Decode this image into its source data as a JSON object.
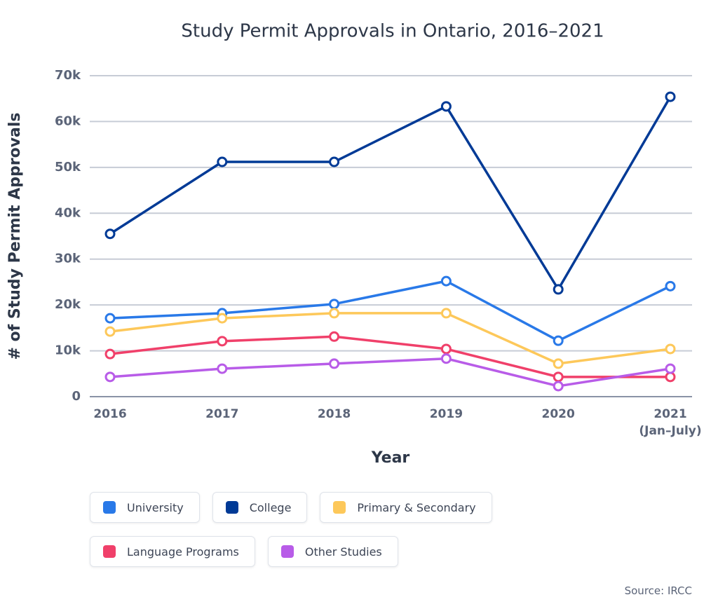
{
  "chart_data": {
    "type": "line",
    "title": "Study Permit Approvals in Ontario, 2016–2021",
    "x_label": "Year",
    "y_label": "# of Study Permit Approvals",
    "source": "Source: IRCC",
    "categories": [
      "2016",
      "2017",
      "2018",
      "2019",
      "2020",
      "2021\n(Jan–July)"
    ],
    "series": [
      {
        "name": "University",
        "color": "#2979e8",
        "values": [
          17100,
          18200,
          20200,
          25200,
          12200,
          24100
        ]
      },
      {
        "name": "College",
        "color": "#003a96",
        "values": [
          35500,
          51200,
          51200,
          63300,
          23400,
          65400
        ]
      },
      {
        "name": "Primary & Secondary",
        "color": "#fdc85a",
        "values": [
          14200,
          17100,
          18200,
          18200,
          7200,
          10400
        ]
      },
      {
        "name": "Language Programs",
        "color": "#f0406a",
        "values": [
          9300,
          12100,
          13100,
          10400,
          4300,
          4300
        ]
      },
      {
        "name": "Other Studies",
        "color": "#b85ce8",
        "values": [
          4300,
          6100,
          7200,
          8300,
          2300,
          6100
        ]
      }
    ],
    "ylim": [
      0,
      70000
    ],
    "yticks": [
      0,
      {
        "value": 10000,
        "label": "10k"
      },
      {
        "value": 20000,
        "label": "20k"
      },
      {
        "value": 30000,
        "label": "30k"
      },
      {
        "value": 40000,
        "label": "40k"
      },
      {
        "value": 50000,
        "label": "50k"
      },
      {
        "value": 60000,
        "label": "60k"
      },
      {
        "value": 70000,
        "label": "70k"
      }
    ],
    "grid": true
  }
}
